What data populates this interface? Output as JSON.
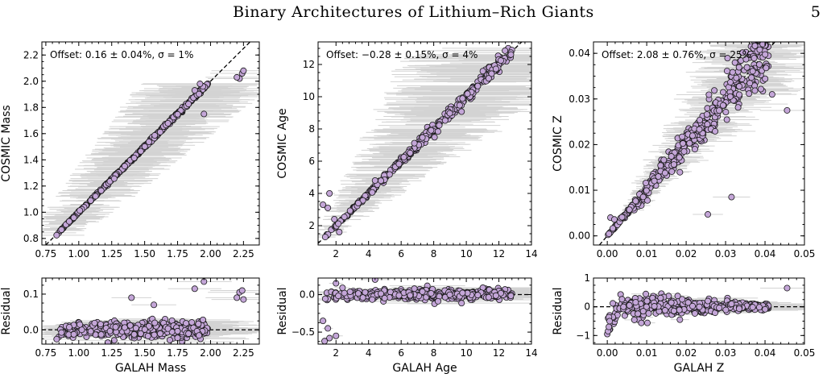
{
  "header": {
    "title": "Binary Architectures of Lithium–Rich Giants",
    "page_number": "5"
  },
  "colors": {
    "point_fill": "#c4a6d8",
    "point_stroke": "#1a1a1a",
    "error_bar": "#d3d3d3",
    "reference_line": "#000000"
  },
  "chart_data": [
    {
      "type": "scatter",
      "title": "",
      "xlabel": "",
      "ylabel": "COSMIC Mass",
      "annotation": "Offset: 0.16 ± 0.04%, σ =  1%",
      "xlim": [
        0.72,
        2.37
      ],
      "ylim": [
        0.75,
        2.3
      ],
      "xticks": [
        0.75,
        1.0,
        1.25,
        1.5,
        1.75,
        2.0,
        2.25
      ],
      "xtick_labels": [
        "0.75",
        "1.00",
        "1.25",
        "1.50",
        "1.75",
        "2.00",
        "2.25"
      ],
      "yticks": [
        0.8,
        1.0,
        1.2,
        1.4,
        1.6,
        1.8,
        2.0,
        2.2
      ],
      "ytick_labels": [
        "0.8",
        "1.0",
        "1.2",
        "1.4",
        "1.6",
        "1.8",
        "2.0",
        "2.2"
      ],
      "reference_line": "y = x",
      "trend": {
        "x_range": [
          0.83,
          1.98
        ],
        "scatter_fraction": 0.004,
        "n_points": 380,
        "xerr_fraction": 0.18
      },
      "outliers": [
        [
          2.22,
          2.02
        ],
        [
          2.24,
          2.06
        ],
        [
          2.25,
          2.08
        ],
        [
          2.2,
          2.03
        ],
        [
          1.95,
          1.75
        ],
        [
          1.88,
          1.93
        ],
        [
          1.92,
          1.98
        ]
      ]
    },
    {
      "type": "scatter",
      "title": "",
      "xlabel": "",
      "ylabel": "COSMIC Age",
      "annotation": "Offset: −0.28 ± 0.15%, σ =  4%",
      "xlim": [
        0.9,
        14.0
      ],
      "ylim": [
        0.8,
        13.4
      ],
      "xticks": [
        2,
        4,
        6,
        8,
        10,
        12,
        14
      ],
      "xtick_labels": [
        "2",
        "4",
        "6",
        "8",
        "10",
        "12",
        "14"
      ],
      "yticks": [
        2,
        4,
        6,
        8,
        10,
        12
      ],
      "ytick_labels": [
        "2",
        "4",
        "6",
        "8",
        "10",
        "12"
      ],
      "reference_line": "y = x",
      "trend": {
        "x_range": [
          1.3,
          12.8
        ],
        "scatter_fraction": 0.02,
        "n_points": 380,
        "xerr_fraction": 0.35
      },
      "outliers": [
        [
          1.2,
          3.3
        ],
        [
          1.5,
          3.1
        ],
        [
          1.6,
          4.0
        ],
        [
          1.9,
          2.4
        ],
        [
          4.4,
          4.8
        ],
        [
          2.2,
          1.6
        ]
      ]
    },
    {
      "type": "scatter",
      "title": "",
      "xlabel": "",
      "ylabel": "COSMIC Z",
      "annotation": "Offset: 2.08 ± 0.76%, σ =  25%",
      "xlim": [
        -0.0035,
        0.05
      ],
      "ylim": [
        -0.002,
        0.0425
      ],
      "xticks": [
        0.0,
        0.01,
        0.02,
        0.03,
        0.04,
        0.05
      ],
      "xtick_labels": [
        "0.00",
        "0.01",
        "0.02",
        "0.03",
        "0.04",
        "0.05"
      ],
      "yticks": [
        0.0,
        0.01,
        0.02,
        0.03,
        0.04
      ],
      "ytick_labels": [
        "0.00",
        "0.01",
        "0.02",
        "0.03",
        "0.04"
      ],
      "reference_line": "y = x",
      "trend": {
        "x_range": [
          0.0,
          0.041
        ],
        "scatter_fraction": 0.08,
        "n_points": 420,
        "xerr_fraction": 0.25
      },
      "outliers": [
        [
          0.0315,
          0.0085
        ],
        [
          0.0255,
          0.0047
        ],
        [
          0.0456,
          0.0275
        ],
        [
          0.0418,
          0.031
        ],
        [
          0.0008,
          0.004
        ],
        [
          0.0018,
          0.0036
        ]
      ]
    },
    {
      "type": "scatter",
      "title": "",
      "xlabel": "GALAH Mass",
      "ylabel": "Residual",
      "xlim": [
        0.72,
        2.37
      ],
      "ylim": [
        -0.04,
        0.145
      ],
      "xticks": [
        0.75,
        1.0,
        1.25,
        1.5,
        1.75,
        2.0,
        2.25
      ],
      "xtick_labels": [
        "0.75",
        "1.00",
        "1.25",
        "1.50",
        "1.75",
        "2.00",
        "2.25"
      ],
      "yticks": [
        0.0,
        0.1
      ],
      "ytick_labels": [
        "0.0",
        "0.1"
      ],
      "reference_line": "y = 0",
      "trend": {
        "x_range": [
          0.83,
          1.98
        ],
        "scatter_abs": 0.012,
        "n_points": 380,
        "xerr_fraction": 0.18
      },
      "outliers": [
        [
          2.22,
          0.105
        ],
        [
          2.24,
          0.11
        ],
        [
          2.25,
          0.085
        ],
        [
          2.2,
          0.09
        ],
        [
          1.95,
          0.135
        ],
        [
          1.88,
          0.115
        ],
        [
          1.4,
          0.09
        ],
        [
          1.57,
          0.07
        ]
      ]
    },
    {
      "type": "scatter",
      "title": "",
      "xlabel": "GALAH Age",
      "ylabel": "Residual",
      "xlim": [
        0.9,
        14.0
      ],
      "ylim": [
        -0.66,
        0.22
      ],
      "xticks": [
        2,
        4,
        6,
        8,
        10,
        12,
        14
      ],
      "xtick_labels": [
        "2",
        "4",
        "6",
        "8",
        "10",
        "12",
        "14"
      ],
      "yticks": [
        -0.5,
        0.0
      ],
      "ytick_labels": [
        "−0.5",
        "0.0"
      ],
      "reference_line": "y = 0",
      "trend": {
        "x_range": [
          1.3,
          12.8
        ],
        "scatter_abs": 0.035,
        "n_points": 380,
        "xerr_fraction": 0.35
      },
      "outliers": [
        [
          1.2,
          -0.35
        ],
        [
          1.5,
          -0.45
        ],
        [
          1.6,
          -0.58
        ],
        [
          1.3,
          -0.62
        ],
        [
          2.0,
          0.15
        ],
        [
          2.0,
          -0.55
        ],
        [
          4.4,
          0.2
        ],
        [
          2.4,
          0.09
        ]
      ]
    },
    {
      "type": "scatter",
      "title": "",
      "xlabel": "GALAH Z",
      "ylabel": "Residual",
      "xlim": [
        -0.0035,
        0.05
      ],
      "ylim": [
        -1.3,
        1.0
      ],
      "xticks": [
        0.0,
        0.01,
        0.02,
        0.03,
        0.04,
        0.05
      ],
      "xtick_labels": [
        "0.00",
        "0.01",
        "0.02",
        "0.03",
        "0.04",
        "0.05"
      ],
      "yticks": [
        -1,
        0,
        1
      ],
      "ytick_labels": [
        "−1",
        "0",
        "1"
      ],
      "reference_line": "y = 0",
      "trend": {
        "x_range": [
          0.0,
          0.041
        ],
        "scatter_abs": 0.2,
        "n_points": 420,
        "xerr_fraction": 0.25
      },
      "outliers": [
        [
          0.0456,
          0.65
        ],
        [
          0.0,
          -0.95
        ],
        [
          0.0002,
          -0.85
        ],
        [
          0.0004,
          -0.7
        ],
        [
          0.0006,
          -0.5
        ],
        [
          0.0315,
          0.1
        ],
        [
          0.0255,
          0.2
        ]
      ]
    }
  ]
}
